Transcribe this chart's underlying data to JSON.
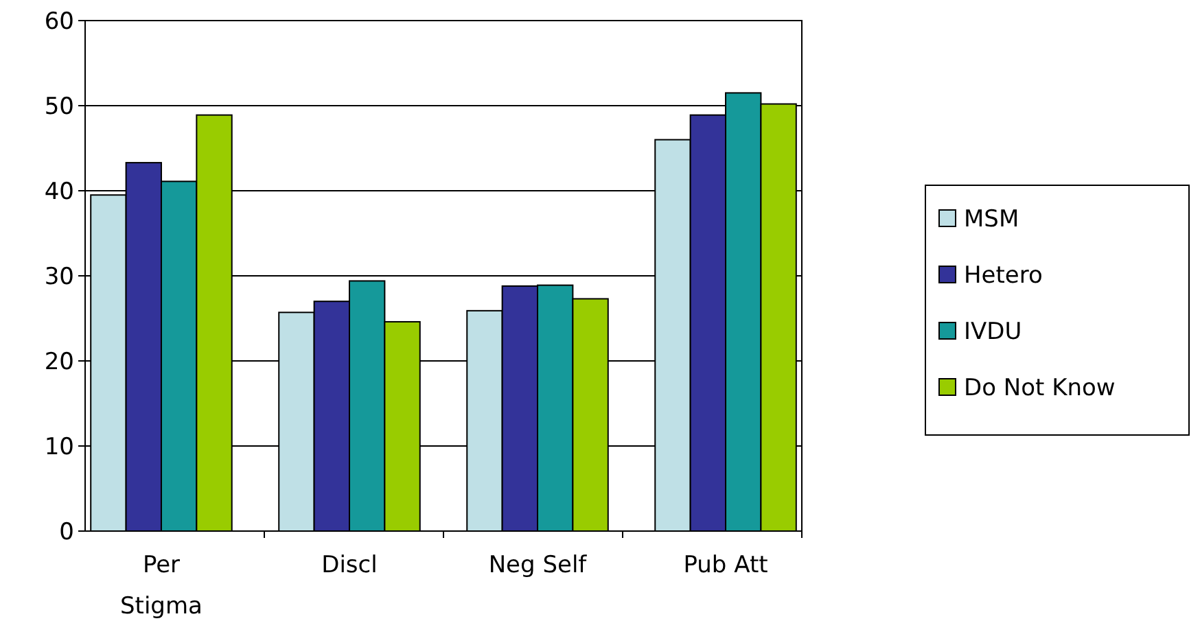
{
  "chart_data": {
    "type": "bar",
    "categories": [
      "Per\nStigma",
      "Discl",
      "Neg Self",
      "Pub Att"
    ],
    "series": [
      {
        "name": "MSM",
        "color": "#bfe0e6",
        "values": [
          39.5,
          25.7,
          25.9,
          46
        ]
      },
      {
        "name": "Hetero",
        "color": "#333399",
        "values": [
          43.3,
          27,
          28.8,
          48.9
        ]
      },
      {
        "name": "IVDU",
        "color": "#15999a",
        "values": [
          41.1,
          29.4,
          28.9,
          51.5
        ]
      },
      {
        "name": "Do Not Know",
        "color": "#99cc00",
        "values": [
          48.9,
          24.6,
          27.3,
          50.2
        ]
      }
    ],
    "ylim": [
      0,
      60
    ],
    "yticks": [
      0,
      10,
      20,
      30,
      40,
      50,
      60
    ],
    "grid": "y",
    "legend": "right"
  }
}
